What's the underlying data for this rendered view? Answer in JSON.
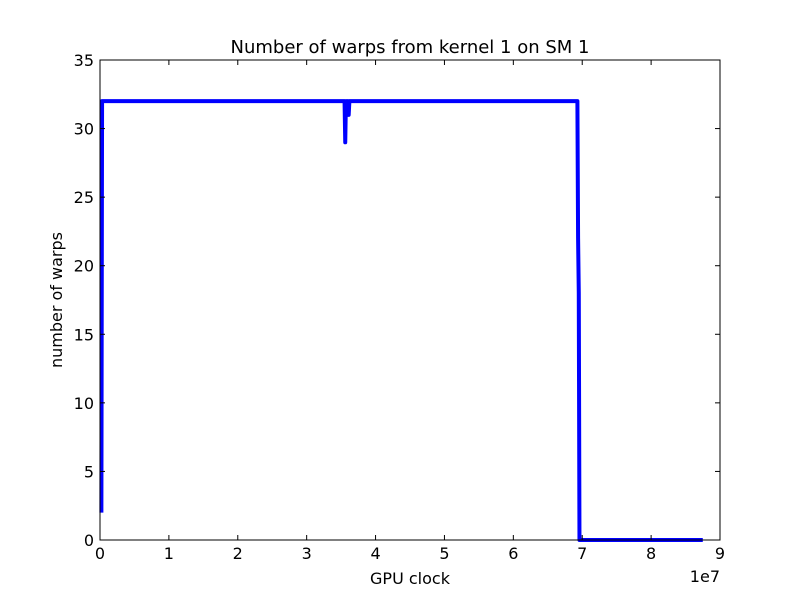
{
  "chart_data": {
    "type": "line",
    "title": "Number of warps from kernel 1 on SM 1",
    "xlabel": "GPU clock",
    "ylabel": "number of warps",
    "x_multiplier_label": "1e7",
    "xlim": [
      0,
      9
    ],
    "ylim": [
      0,
      35
    ],
    "x_ticks": [
      "0",
      "1",
      "2",
      "3",
      "4",
      "5",
      "6",
      "7",
      "8",
      "9"
    ],
    "y_ticks": [
      "0",
      "5",
      "10",
      "15",
      "20",
      "25",
      "30",
      "35"
    ],
    "grid": false,
    "series": [
      {
        "color": "#0000ff",
        "x": [
          0.02,
          0.03,
          0.05,
          3.55,
          3.56,
          3.57,
          3.58,
          3.585,
          3.59,
          3.6,
          3.61,
          3.62,
          3.64,
          6.93,
          6.94,
          6.95,
          6.96,
          8.75
        ],
        "y": [
          2,
          32,
          32,
          32,
          29,
          32,
          31,
          32,
          31,
          32,
          31,
          32,
          32,
          32,
          22,
          18,
          0,
          0
        ]
      }
    ]
  }
}
